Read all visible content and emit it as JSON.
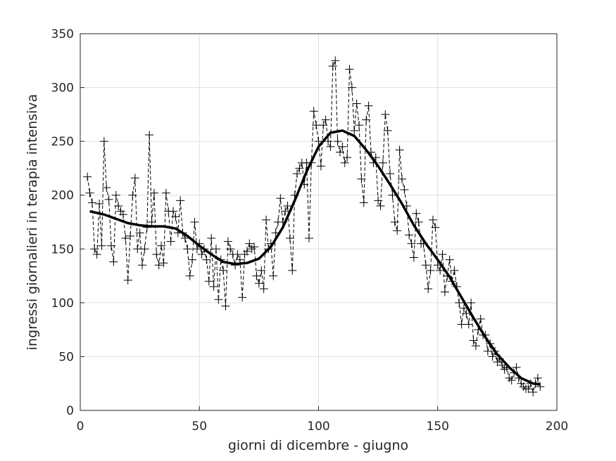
{
  "chart_data": {
    "type": "line",
    "xlabel": "giorni di dicembre - giugno",
    "ylabel": "ingressi giornalieri in terapia intensiva",
    "xlim": [
      0,
      200
    ],
    "xticks": [
      0,
      50,
      100,
      150,
      200
    ],
    "ylim": [
      0,
      350
    ],
    "yticks": [
      0,
      50,
      100,
      150,
      200,
      250,
      300,
      350
    ],
    "grid": true,
    "series": [
      {
        "color": "#000000",
        "line_style": "dashed",
        "marker": "+",
        "x": [
          3,
          4,
          5,
          6,
          7,
          8,
          9,
          10,
          11,
          12,
          13,
          14,
          15,
          16,
          17,
          18,
          19,
          20,
          21,
          22,
          23,
          24,
          25,
          26,
          27,
          28,
          29,
          30,
          31,
          32,
          33,
          34,
          35,
          36,
          37,
          38,
          39,
          40,
          41,
          42,
          43,
          44,
          45,
          46,
          47,
          48,
          49,
          50,
          51,
          52,
          53,
          54,
          55,
          56,
          57,
          58,
          59,
          60,
          61,
          62,
          63,
          64,
          65,
          66,
          67,
          68,
          69,
          70,
          71,
          72,
          73,
          74,
          75,
          76,
          77,
          78,
          79,
          80,
          81,
          82,
          83,
          84,
          85,
          86,
          87,
          88,
          89,
          90,
          91,
          92,
          93,
          94,
          95,
          96,
          97,
          98,
          99,
          100,
          101,
          102,
          103,
          104,
          105,
          106,
          107,
          108,
          109,
          110,
          111,
          112,
          113,
          114,
          115,
          116,
          117,
          118,
          119,
          120,
          121,
          122,
          123,
          124,
          125,
          126,
          127,
          128,
          129,
          130,
          131,
          132,
          133,
          134,
          135,
          136,
          137,
          138,
          139,
          140,
          141,
          142,
          143,
          144,
          145,
          146,
          147,
          148,
          149,
          150,
          151,
          152,
          153,
          154,
          155,
          156,
          157,
          158,
          159,
          160,
          161,
          162,
          163,
          164,
          165,
          166,
          167,
          168,
          169,
          170,
          171,
          172,
          173,
          174,
          175,
          176,
          177,
          178,
          179,
          180,
          181,
          182,
          183,
          184,
          185,
          186,
          187,
          188,
          189,
          190,
          191,
          192,
          193
        ],
        "values": [
          217,
          202,
          193,
          150,
          145,
          192,
          153,
          250,
          207,
          196,
          153,
          138,
          200,
          190,
          185,
          182,
          160,
          121,
          162,
          200,
          216,
          150,
          165,
          135,
          150,
          170,
          256,
          175,
          202,
          145,
          135,
          153,
          137,
          202,
          185,
          157,
          185,
          180,
          165,
          195,
          165,
          160,
          150,
          125,
          140,
          175,
          150,
          155,
          145,
          150,
          140,
          120,
          160,
          115,
          150,
          103,
          140,
          130,
          97,
          157,
          150,
          145,
          135,
          145,
          140,
          105,
          145,
          148,
          155,
          150,
          152,
          125,
          118,
          130,
          113,
          177,
          150,
          155,
          125,
          165,
          175,
          197,
          175,
          185,
          190,
          160,
          130,
          200,
          220,
          225,
          230,
          210,
          230,
          160,
          230,
          278,
          265,
          250,
          227,
          265,
          270,
          250,
          245,
          320,
          325,
          250,
          240,
          245,
          230,
          235,
          317,
          300,
          260,
          285,
          265,
          215,
          193,
          270,
          283,
          240,
          230,
          235,
          195,
          190,
          230,
          275,
          260,
          220,
          200,
          175,
          167,
          242,
          215,
          205,
          190,
          163,
          155,
          142,
          183,
          175,
          155,
          155,
          135,
          113,
          130,
          177,
          170,
          135,
          130,
          145,
          110,
          125,
          140,
          120,
          130,
          115,
          100,
          80,
          95,
          90,
          80,
          100,
          65,
          60,
          75,
          85,
          70,
          70,
          55,
          62,
          50,
          55,
          45,
          48,
          42,
          38,
          40,
          30,
          28,
          35,
          40,
          30,
          25,
          22,
          20,
          20,
          25,
          17,
          25,
          30,
          22
        ]
      },
      {
        "color": "#000000",
        "line_style": "solid",
        "x": [
          4,
          10,
          15,
          20,
          25,
          30,
          35,
          40,
          45,
          50,
          55,
          60,
          65,
          70,
          75,
          80,
          85,
          90,
          95,
          100,
          105,
          110,
          115,
          120,
          125,
          130,
          135,
          140,
          145,
          150,
          155,
          160,
          165,
          170,
          175,
          180,
          185,
          190,
          193
        ],
        "values": [
          185,
          182,
          178,
          174,
          172,
          171,
          171,
          169,
          162,
          153,
          145,
          138,
          136,
          137,
          141,
          152,
          170,
          195,
          222,
          245,
          258,
          260,
          255,
          242,
          227,
          210,
          192,
          172,
          155,
          140,
          124,
          105,
          86,
          68,
          52,
          40,
          30,
          25,
          24
        ]
      }
    ]
  }
}
